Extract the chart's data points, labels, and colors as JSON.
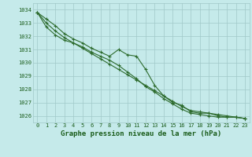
{
  "title": "Graphe pression niveau de la mer (hPa)",
  "bg_color": "#c5eaea",
  "grid_color": "#a0c8c8",
  "line_color": "#2d6b2d",
  "text_color": "#1a5c1a",
  "ylim": [
    1025.5,
    1034.5
  ],
  "xlim": [
    -0.5,
    23.5
  ],
  "yticks": [
    1026,
    1027,
    1028,
    1029,
    1030,
    1031,
    1032,
    1033,
    1034
  ],
  "xticks": [
    0,
    1,
    2,
    3,
    4,
    5,
    6,
    7,
    8,
    9,
    10,
    11,
    12,
    13,
    14,
    15,
    16,
    17,
    18,
    19,
    20,
    21,
    22,
    23
  ],
  "xlabel_fontsize": 6.5,
  "tick_fontsize": 5.0,
  "series": [
    [
      1033.8,
      1033.3,
      1032.8,
      1032.2,
      1031.8,
      1031.5,
      1031.1,
      1030.8,
      1030.5,
      1031.0,
      1030.6,
      1030.5,
      1029.5,
      1028.3,
      1027.5,
      1027.0,
      1026.8,
      1026.3,
      1026.2,
      1026.2,
      1026.1,
      1026.0,
      1025.9,
      1025.8
    ],
    [
      1033.8,
      1032.7,
      1032.1,
      1031.7,
      1031.5,
      1031.2,
      1030.8,
      1030.5,
      1030.2,
      1029.8,
      1029.3,
      1028.8,
      1028.2,
      1027.8,
      1027.3,
      1026.9,
      1026.5,
      1026.2,
      1026.1,
      1026.0,
      1025.9,
      1025.9,
      1025.9,
      1025.8
    ],
    [
      1033.8,
      1033.0,
      1032.4,
      1031.9,
      1031.5,
      1031.1,
      1030.7,
      1030.3,
      1029.9,
      1029.5,
      1029.1,
      1028.7,
      1028.3,
      1027.9,
      1027.5,
      1027.1,
      1026.7,
      1026.4,
      1026.3,
      1026.2,
      1026.0,
      1025.9,
      1025.9,
      1025.8
    ]
  ]
}
